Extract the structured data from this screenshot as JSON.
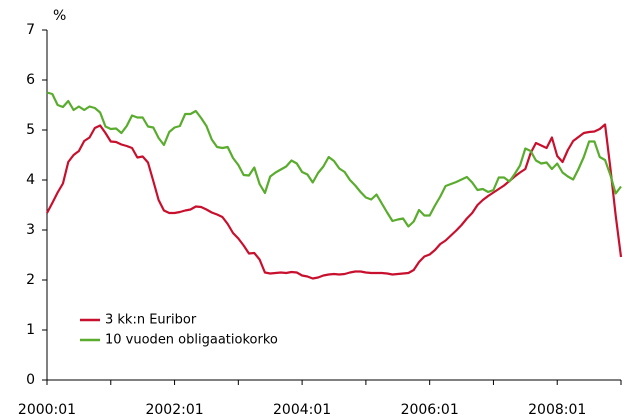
{
  "chart_data": {
    "type": "line",
    "y_label": "%",
    "categories": [
      "2000:01",
      null,
      null,
      null,
      null,
      null,
      null,
      null,
      null,
      null,
      null,
      null,
      null,
      null,
      null,
      null,
      null,
      null,
      null,
      null,
      null,
      null,
      null,
      null,
      "2002:01",
      null,
      null,
      null,
      null,
      null,
      null,
      null,
      null,
      null,
      null,
      null,
      null,
      null,
      null,
      null,
      null,
      null,
      null,
      null,
      null,
      null,
      null,
      null,
      "2004:01",
      null,
      null,
      null,
      null,
      null,
      null,
      null,
      null,
      null,
      null,
      null,
      null,
      null,
      null,
      null,
      null,
      null,
      null,
      null,
      null,
      null,
      null,
      null,
      "2006:01",
      null,
      null,
      null,
      null,
      null,
      null,
      null,
      null,
      null,
      null,
      null,
      null,
      null,
      null,
      null,
      null,
      null,
      null,
      null,
      null,
      null,
      null,
      null,
      "2008:01",
      null,
      null,
      null,
      null,
      null,
      null,
      null,
      null,
      null,
      null,
      null,
      null
    ],
    "series": [
      {
        "name": "3 kk:n Euribor",
        "color": "#c8102e",
        "values": [
          3.34,
          3.54,
          3.75,
          3.93,
          4.36,
          4.5,
          4.58,
          4.78,
          4.85,
          5.04,
          5.09,
          4.94,
          4.77,
          4.76,
          4.71,
          4.68,
          4.64,
          4.45,
          4.47,
          4.35,
          3.98,
          3.6,
          3.39,
          3.34,
          3.34,
          3.36,
          3.39,
          3.41,
          3.47,
          3.46,
          3.41,
          3.35,
          3.31,
          3.26,
          3.12,
          2.94,
          2.83,
          2.69,
          2.53,
          2.54,
          2.41,
          2.15,
          2.13,
          2.14,
          2.15,
          2.14,
          2.16,
          2.15,
          2.09,
          2.07,
          2.03,
          2.05,
          2.09,
          2.11,
          2.12,
          2.11,
          2.12,
          2.15,
          2.17,
          2.17,
          2.15,
          2.14,
          2.14,
          2.14,
          2.13,
          2.11,
          2.12,
          2.13,
          2.14,
          2.2,
          2.36,
          2.47,
          2.51,
          2.6,
          2.72,
          2.79,
          2.89,
          2.99,
          3.1,
          3.23,
          3.34,
          3.5,
          3.6,
          3.68,
          3.75,
          3.82,
          3.89,
          3.98,
          4.07,
          4.15,
          4.22,
          4.54,
          4.74,
          4.69,
          4.64,
          4.85,
          4.48,
          4.36,
          4.6,
          4.78,
          4.86,
          4.94,
          4.96,
          4.97,
          5.02,
          5.11,
          4.24,
          3.29,
          2.46
        ]
      },
      {
        "name": "10 vuoden obligaatiokorko",
        "color": "#5aac2e",
        "values": [
          5.75,
          5.72,
          5.5,
          5.46,
          5.58,
          5.4,
          5.47,
          5.4,
          5.47,
          5.44,
          5.35,
          5.07,
          5.02,
          5.03,
          4.94,
          5.08,
          5.29,
          5.25,
          5.25,
          5.07,
          5.05,
          4.84,
          4.7,
          4.96,
          5.05,
          5.08,
          5.32,
          5.32,
          5.38,
          5.24,
          5.08,
          4.81,
          4.66,
          4.64,
          4.66,
          4.44,
          4.3,
          4.1,
          4.09,
          4.25,
          3.92,
          3.74,
          4.07,
          4.15,
          4.21,
          4.27,
          4.39,
          4.33,
          4.16,
          4.11,
          3.95,
          4.14,
          4.27,
          4.46,
          4.38,
          4.23,
          4.16,
          4.0,
          3.89,
          3.76,
          3.65,
          3.61,
          3.71,
          3.53,
          3.35,
          3.18,
          3.21,
          3.23,
          3.07,
          3.17,
          3.4,
          3.29,
          3.29,
          3.49,
          3.67,
          3.88,
          3.92,
          3.96,
          4.01,
          4.06,
          3.95,
          3.8,
          3.82,
          3.76,
          3.8,
          4.05,
          4.05,
          3.97,
          4.12,
          4.29,
          4.63,
          4.58,
          4.39,
          4.33,
          4.35,
          4.22,
          4.33,
          4.15,
          4.07,
          4.01,
          4.22,
          4.46,
          4.77,
          4.77,
          4.46,
          4.4,
          4.1,
          3.73,
          3.87
        ]
      }
    ],
    "ylim": [
      0,
      7
    ],
    "yticks": [
      0,
      1,
      2,
      3,
      4,
      5,
      6,
      7
    ],
    "legend": "lower left",
    "grid": false
  }
}
